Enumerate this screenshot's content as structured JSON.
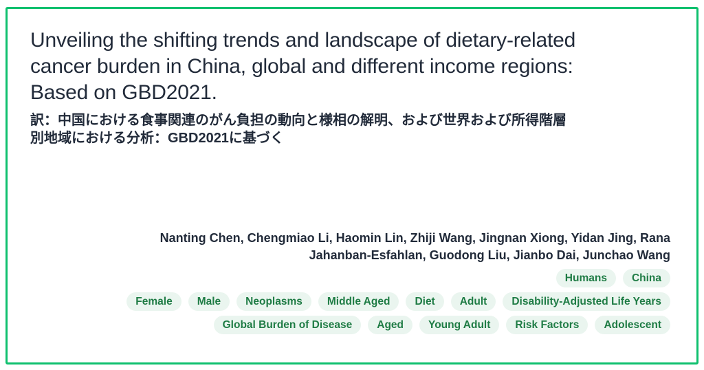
{
  "paper": {
    "title": "Unveiling the shifting trends and landscape of dietary-related cancer burden in China, global and different income regions: Based on GBD2021.",
    "title_japanese": "訳：中国における食事関連のがん負担の動向と様相の解明、および世界および所得階層別地域における分析：GBD2021に基づく",
    "authors": "Nanting Chen, Chengmiao Li, Haomin Lin, Zhiji Wang, Jingnan Xiong, Yidan Jing, Rana Jahanban-Esfahlan, Guodong Liu, Jianbo Dai, Junchao Wang"
  },
  "tags": {
    "rows": [
      [
        "Humans",
        "China"
      ],
      [
        "Female",
        "Male",
        "Neoplasms",
        "Middle Aged",
        "Diet",
        "Adult",
        "Disability-Adjusted Life Years"
      ],
      [
        "Global Burden of Disease",
        "Aged",
        "Young Adult",
        "Risk Factors",
        "Adolescent"
      ]
    ]
  },
  "colors": {
    "card_border": "#0ec06e",
    "text": "#222b3a",
    "tag_background": "#eaf5ef",
    "tag_text": "#1f7c45"
  }
}
